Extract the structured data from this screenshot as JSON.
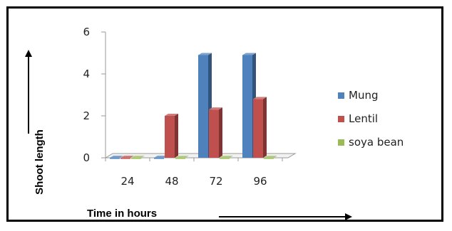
{
  "chart_data": {
    "type": "bar",
    "categories": [
      "24",
      "48",
      "72",
      "96"
    ],
    "series": [
      {
        "name": "Mung",
        "values": [
          0,
          0,
          4.9,
          4.9
        ],
        "color": "#4f81bd"
      },
      {
        "name": "Lentil",
        "values": [
          0,
          2.0,
          2.3,
          2.8
        ],
        "color": "#c0504d"
      },
      {
        "name": "soya bean",
        "values": [
          0,
          0,
          0,
          0
        ],
        "color": "#9bbb59"
      }
    ],
    "ylim": [
      0,
      6
    ],
    "yticks": [
      0,
      2,
      4,
      6
    ],
    "xlabel": "Time in hours",
    "ylabel": "Shoot length",
    "legend_position": "right",
    "grid": false
  }
}
